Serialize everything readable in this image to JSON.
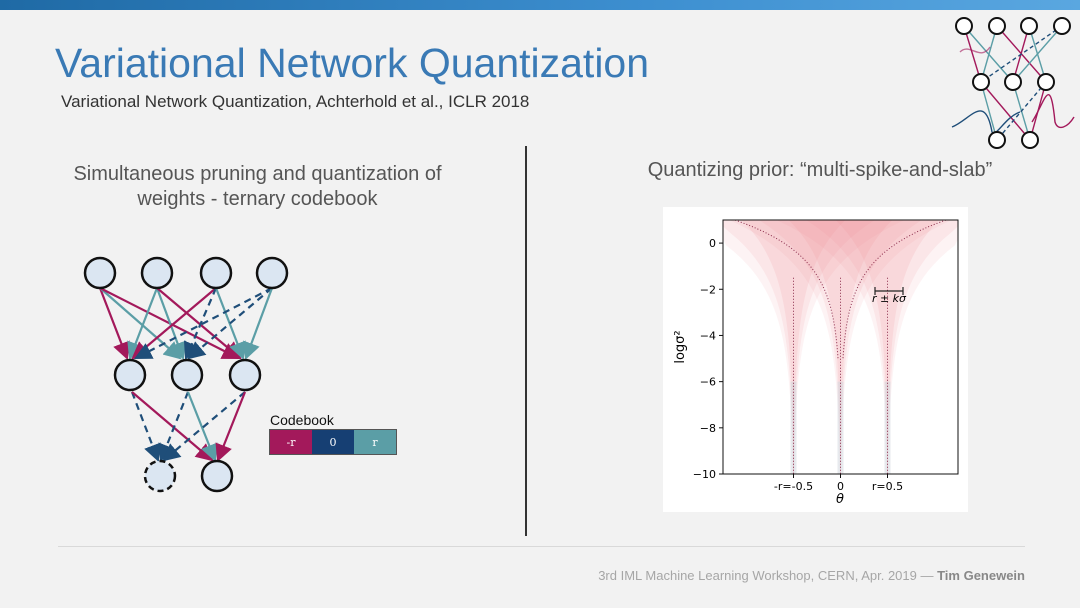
{
  "slide": {
    "title": "Variational Network Quantization",
    "subtitle": "Variational Network Quantization, Achterhold et al., ICLR 2018",
    "left_heading_line1": "Simultaneous pruning and quantization of",
    "left_heading_line2": "weights - ternary codebook",
    "right_heading": "Quantizing prior: “multi-spike-and-slab”",
    "footer_text": "3rd IML Machine Learning Workshop, CERN, Apr. 2019 — ",
    "footer_author": "Tim Genewein"
  },
  "codebook": {
    "label": "Codebook",
    "cells": [
      {
        "text": "-r",
        "color": "#a3195b"
      },
      {
        "text": "0",
        "color": "#163f73"
      },
      {
        "text": "r",
        "color": "#5b9ea6"
      }
    ]
  },
  "colors": {
    "accent": "#3a7ab5",
    "neg_weight": "#a3195b",
    "zero_weight": "#1f4e79",
    "pos_weight": "#5b9ea6",
    "node_fill": "#dbe6f2"
  },
  "chart_data": {
    "type": "area",
    "title": "",
    "xlabel": "θ",
    "ylabel": "logσ²",
    "x_ticks": [
      "-r=-0.5",
      "0",
      "r=0.5"
    ],
    "x_tick_values": [
      -0.5,
      0,
      0.5
    ],
    "y_ticks": [
      "0",
      "−2",
      "−4",
      "−6",
      "−8",
      "−10"
    ],
    "y_tick_values": [
      0,
      -2,
      -4,
      -6,
      -8,
      -10
    ],
    "xlim": [
      -1.25,
      1.25
    ],
    "ylim": [
      -10,
      1
    ],
    "spikes": [
      -0.5,
      0,
      0.5
    ],
    "annotation": "r ± kσ"
  }
}
